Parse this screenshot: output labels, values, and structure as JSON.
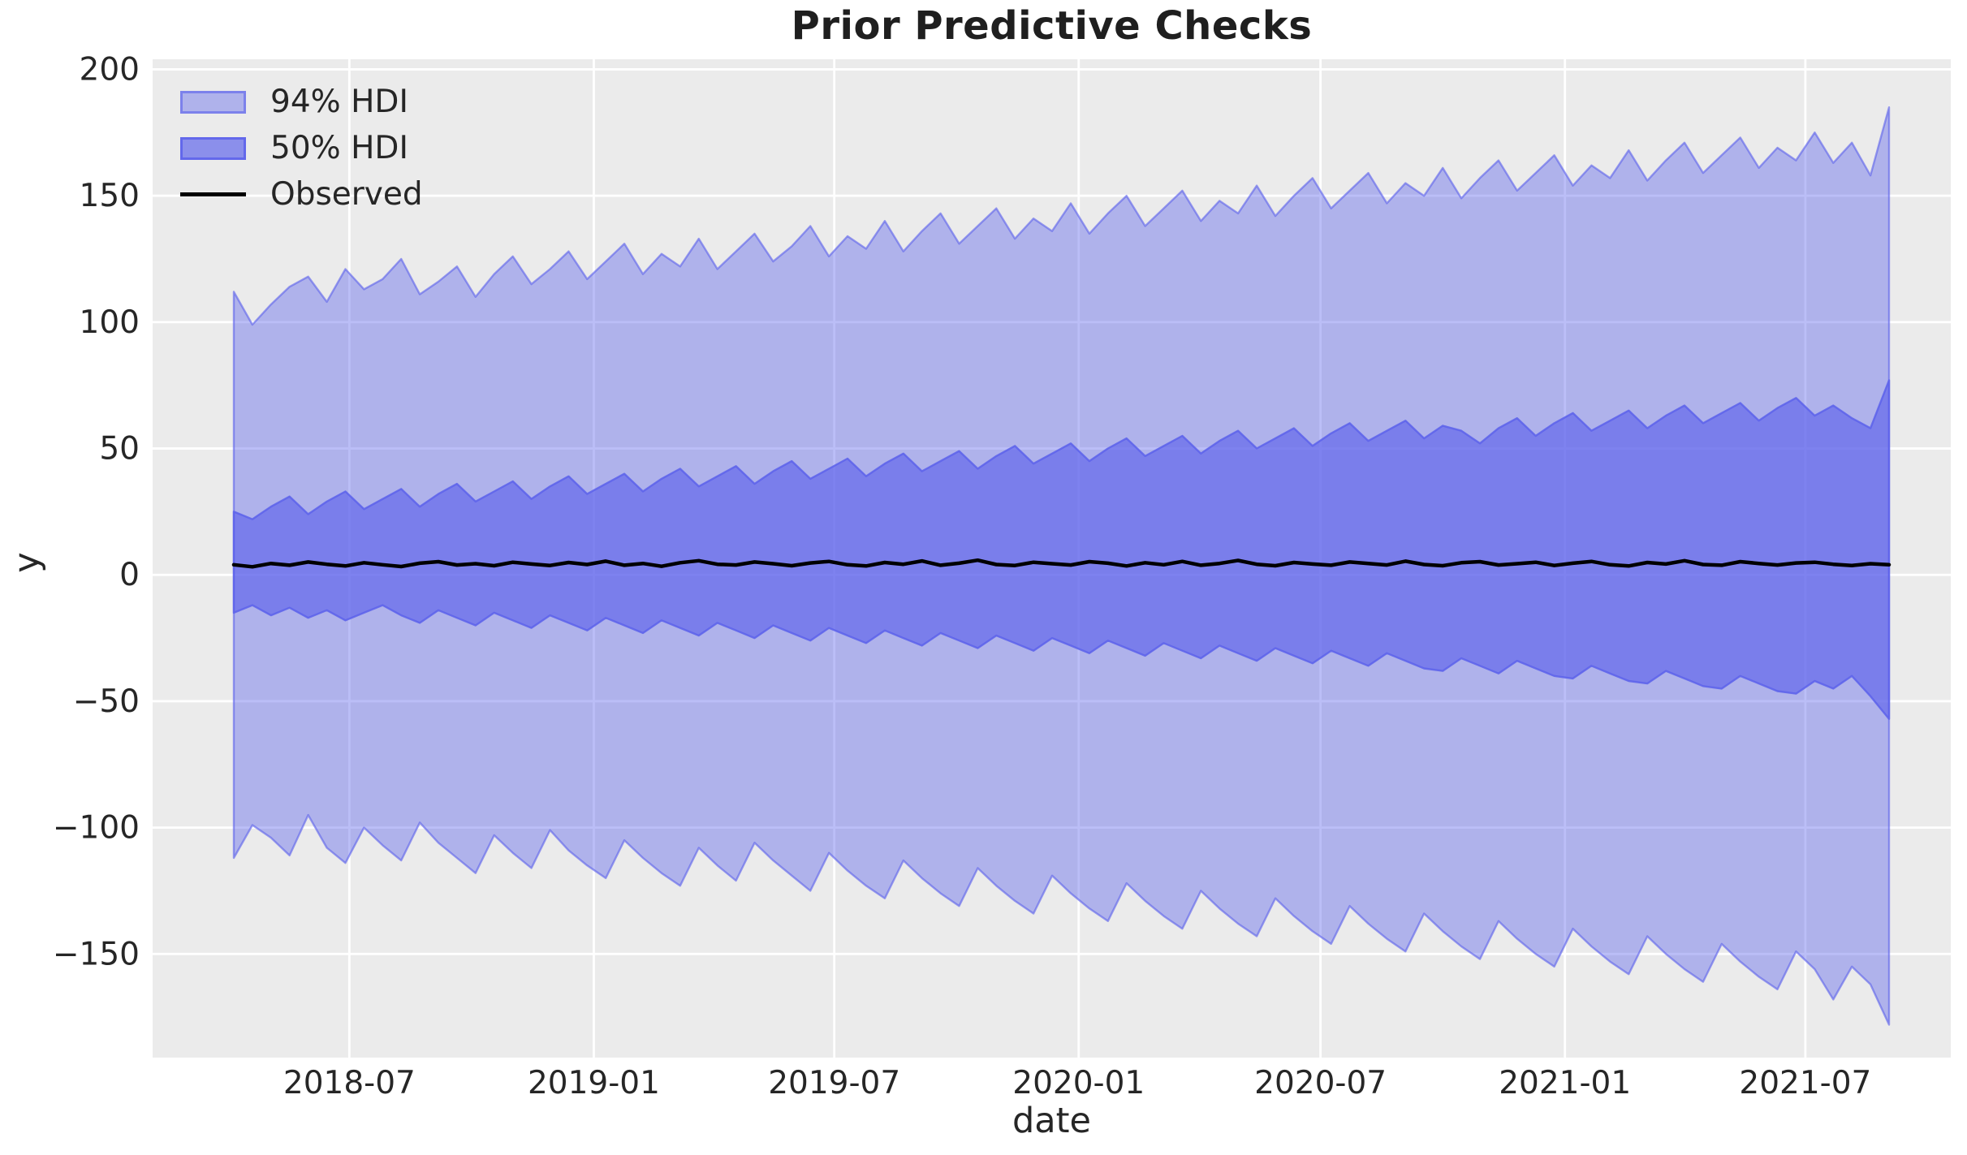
{
  "title": "Prior Predictive Checks",
  "legend": [
    {
      "label": "94% HDI",
      "type": "patch"
    },
    {
      "label": "50% HDI",
      "type": "patch"
    },
    {
      "label": "Observed",
      "type": "line"
    }
  ],
  "colors": {
    "figure_background": "#ffffff",
    "plot_background": "#ebebeb",
    "gridline": "#ffffff",
    "band_base": "#5d63eb",
    "hdi94_fill": "rgba(93,99,235,0.42)",
    "hdi94_edge": "rgba(93,99,235,0.62)",
    "hdi50_fill": "rgba(93,99,235,0.65)",
    "hdi50_edge": "rgba(93,99,235,0.88)",
    "observed_line": "#000000",
    "text": "#262626"
  },
  "chart_data": {
    "type": "area",
    "title": "Prior Predictive Checks",
    "xlabel": "date",
    "ylabel": "y",
    "grid": true,
    "legend_position": "upper left",
    "ylim": [
      -191,
      204
    ],
    "yticks": [
      -150,
      -100,
      -50,
      0,
      50,
      100,
      150,
      200
    ],
    "xticks": [
      "2018-07",
      "2019-01",
      "2019-07",
      "2020-01",
      "2020-07",
      "2021-01",
      "2021-07"
    ],
    "x_range": {
      "start": "2018-04-05",
      "end": "2021-09-02",
      "points": 90
    },
    "series": [
      {
        "name": "94% HDI",
        "kind": "band",
        "upper": [
          112,
          99,
          107,
          114,
          118,
          108,
          121,
          113,
          117,
          125,
          111,
          116,
          122,
          110,
          119,
          126,
          115,
          121,
          128,
          117,
          124,
          131,
          119,
          127,
          122,
          133,
          121,
          128,
          135,
          124,
          130,
          138,
          126,
          134,
          129,
          140,
          128,
          136,
          143,
          131,
          138,
          145,
          133,
          141,
          136,
          147,
          135,
          143,
          150,
          138,
          145,
          152,
          140,
          148,
          143,
          154,
          142,
          150,
          157,
          145,
          152,
          159,
          147,
          155,
          150,
          161,
          149,
          157,
          164,
          152,
          159,
          166,
          154,
          162,
          157,
          168,
          156,
          164,
          171,
          159,
          166,
          173,
          161,
          169,
          164,
          175,
          163,
          171,
          158,
          185
        ],
        "lower": [
          -112,
          -99,
          -104,
          -111,
          -95,
          -108,
          -114,
          -100,
          -107,
          -113,
          -98,
          -106,
          -112,
          -118,
          -103,
          -110,
          -116,
          -101,
          -109,
          -115,
          -120,
          -105,
          -112,
          -118,
          -123,
          -108,
          -115,
          -121,
          -106,
          -113,
          -119,
          -125,
          -110,
          -117,
          -123,
          -128,
          -113,
          -120,
          -126,
          -131,
          -116,
          -123,
          -129,
          -134,
          -119,
          -126,
          -132,
          -137,
          -122,
          -129,
          -135,
          -140,
          -125,
          -132,
          -138,
          -143,
          -128,
          -135,
          -141,
          -146,
          -131,
          -138,
          -144,
          -149,
          -134,
          -141,
          -147,
          -152,
          -137,
          -144,
          -150,
          -155,
          -140,
          -147,
          -153,
          -158,
          -143,
          -150,
          -156,
          -161,
          -146,
          -153,
          -159,
          -164,
          -149,
          -156,
          -168,
          -155,
          -162,
          -178
        ]
      },
      {
        "name": "50% HDI",
        "kind": "band",
        "upper": [
          25,
          22,
          27,
          31,
          24,
          29,
          33,
          26,
          30,
          34,
          27,
          32,
          36,
          29,
          33,
          37,
          30,
          35,
          39,
          32,
          36,
          40,
          33,
          38,
          42,
          35,
          39,
          43,
          36,
          41,
          45,
          38,
          42,
          46,
          39,
          44,
          48,
          41,
          45,
          49,
          42,
          47,
          51,
          44,
          48,
          52,
          45,
          50,
          54,
          47,
          51,
          55,
          48,
          53,
          57,
          50,
          54,
          58,
          51,
          56,
          60,
          53,
          57,
          61,
          54,
          59,
          57,
          52,
          58,
          62,
          55,
          60,
          64,
          57,
          61,
          65,
          58,
          63,
          67,
          60,
          64,
          68,
          61,
          66,
          70,
          63,
          67,
          62,
          58,
          77
        ],
        "lower": [
          -15,
          -12,
          -16,
          -13,
          -17,
          -14,
          -18,
          -15,
          -12,
          -16,
          -19,
          -14,
          -17,
          -20,
          -15,
          -18,
          -21,
          -16,
          -19,
          -22,
          -17,
          -20,
          -23,
          -18,
          -21,
          -24,
          -19,
          -22,
          -25,
          -20,
          -23,
          -26,
          -21,
          -24,
          -27,
          -22,
          -25,
          -28,
          -23,
          -26,
          -29,
          -24,
          -27,
          -30,
          -25,
          -28,
          -31,
          -26,
          -29,
          -32,
          -27,
          -30,
          -33,
          -28,
          -31,
          -34,
          -29,
          -32,
          -35,
          -30,
          -33,
          -36,
          -31,
          -34,
          -37,
          -38,
          -33,
          -36,
          -39,
          -34,
          -37,
          -40,
          -41,
          -36,
          -39,
          -42,
          -43,
          -38,
          -41,
          -44,
          -45,
          -40,
          -43,
          -46,
          -47,
          -42,
          -45,
          -40,
          -48,
          -57
        ]
      },
      {
        "name": "Observed",
        "kind": "line",
        "values": [
          4.0,
          3.2,
          4.5,
          3.8,
          5.1,
          4.2,
          3.5,
          4.8,
          4.0,
          3.3,
          4.6,
          5.2,
          3.9,
          4.4,
          3.6,
          5.0,
          4.3,
          3.7,
          4.9,
          4.1,
          5.4,
          3.8,
          4.5,
          3.4,
          4.8,
          5.6,
          4.2,
          3.9,
          5.1,
          4.4,
          3.6,
          4.7,
          5.3,
          4.0,
          3.5,
          4.9,
          4.2,
          5.5,
          3.8,
          4.6,
          5.8,
          4.1,
          3.7,
          5.0,
          4.4,
          3.9,
          5.2,
          4.6,
          3.5,
          4.8,
          4.0,
          5.3,
          3.8,
          4.5,
          5.7,
          4.2,
          3.6,
          4.9,
          4.3,
          3.8,
          5.1,
          4.5,
          3.9,
          5.4,
          4.1,
          3.6,
          4.8,
          5.2,
          3.9,
          4.4,
          5.0,
          3.7,
          4.6,
          5.3,
          4.0,
          3.5,
          4.9,
          4.3,
          5.6,
          4.1,
          3.8,
          5.2,
          4.5,
          3.9,
          4.7,
          5.0,
          4.2,
          3.7,
          4.4,
          4.0
        ]
      }
    ]
  }
}
